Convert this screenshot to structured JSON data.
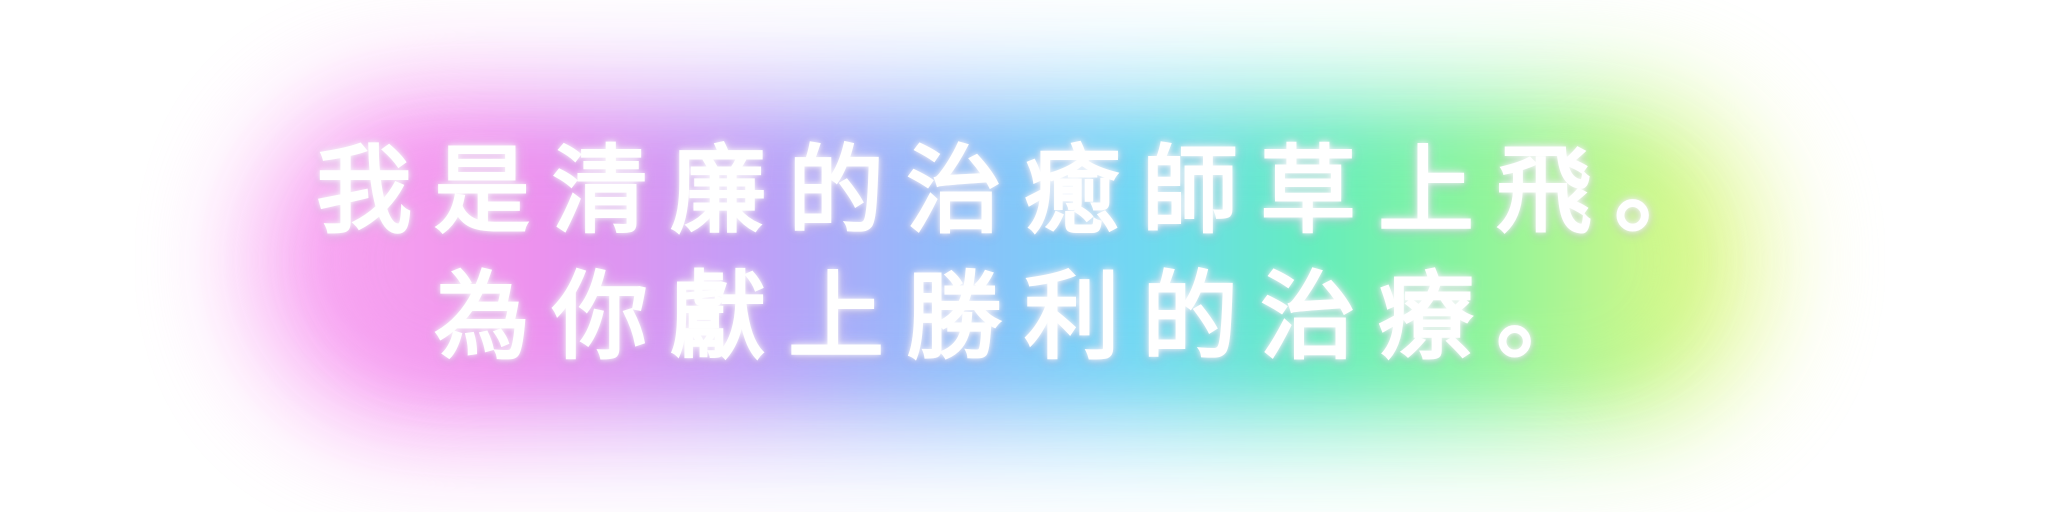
{
  "text": {
    "line1": "我是清廉的治癒師草上飛。",
    "line2": "為你獻上勝利的治療。"
  },
  "colors": {
    "text": "#ffffff",
    "glow_pink": "#f48cf0",
    "glow_blue": "#8eb4fb",
    "glow_cyan": "#6fd3f7",
    "glow_green": "#84f39a",
    "glow_yellow": "#d6f77a"
  }
}
